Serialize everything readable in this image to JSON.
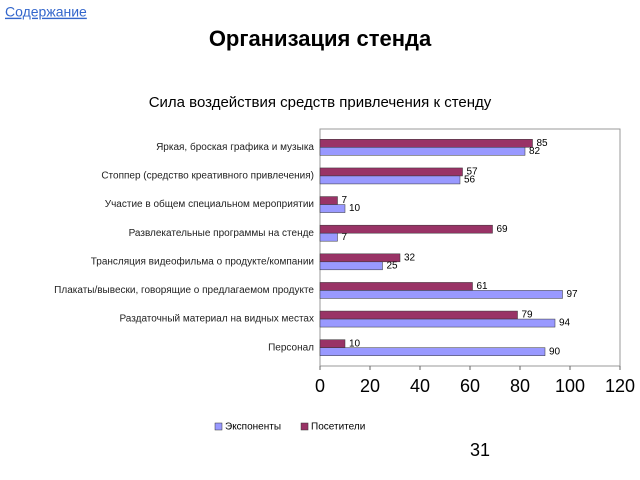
{
  "link": "Содержание",
  "slide_title": "Организация стенда",
  "page_number": "31",
  "chart_data": {
    "type": "hbar",
    "title": "Сила воздействия средств привлечения к стенду",
    "categories": [
      "Яркая, броская графика и музыка",
      "Стоппер (средство креативного привлечения)",
      "Участие в общем специальном мероприятии",
      "Развлекательные программы на стенде",
      "Трансляция видеофильма о продукте/компании",
      "Плакаты/вывески, говорящие о предлагаемом продукте",
      "Раздаточный материал на видных местах",
      "Персонал"
    ],
    "series": [
      {
        "name": "Экспоненты",
        "color": "#9999ff",
        "values": [
          82,
          56,
          10,
          7,
          25,
          97,
          94,
          90
        ]
      },
      {
        "name": "Посетители",
        "color": "#993366",
        "values": [
          85,
          57,
          7,
          69,
          32,
          61,
          79,
          10
        ]
      }
    ],
    "xlim": [
      0,
      120
    ],
    "xticks": [
      0,
      20,
      40,
      60,
      80,
      100,
      120
    ],
    "legend": "bottom"
  }
}
